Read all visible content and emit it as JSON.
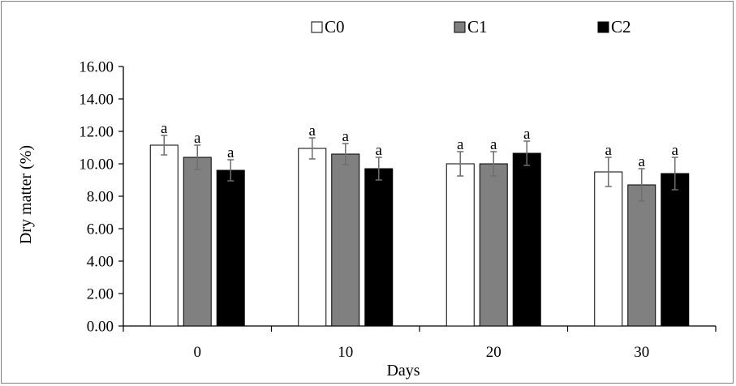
{
  "chart_data": {
    "type": "bar",
    "title": "",
    "xlabel": "Days",
    "ylabel": "Dry matter (%)",
    "ylim": [
      0,
      16
    ],
    "yticks": [
      "0.00",
      "2.00",
      "4.00",
      "6.00",
      "8.00",
      "10.00",
      "12.00",
      "14.00",
      "16.00"
    ],
    "categories": [
      "0",
      "10",
      "20",
      "30"
    ],
    "legend_position": "top",
    "grid": false,
    "series": [
      {
        "name": "C0",
        "color": "#ffffff",
        "values": [
          11.15,
          10.95,
          10.0,
          9.5
        ],
        "errors": [
          0.6,
          0.65,
          0.75,
          0.9
        ],
        "labels": [
          "a",
          "a",
          "a",
          "a"
        ]
      },
      {
        "name": "C1",
        "color": "#808080",
        "values": [
          10.4,
          10.6,
          10.0,
          8.7
        ],
        "errors": [
          0.75,
          0.65,
          0.75,
          1.0
        ],
        "labels": [
          "a",
          "a",
          "a",
          "a"
        ]
      },
      {
        "name": "C2",
        "color": "#000000",
        "values": [
          9.6,
          9.7,
          10.65,
          9.4
        ],
        "errors": [
          0.65,
          0.7,
          0.75,
          1.0
        ],
        "labels": [
          "a",
          "a",
          "a",
          "a"
        ]
      }
    ]
  }
}
